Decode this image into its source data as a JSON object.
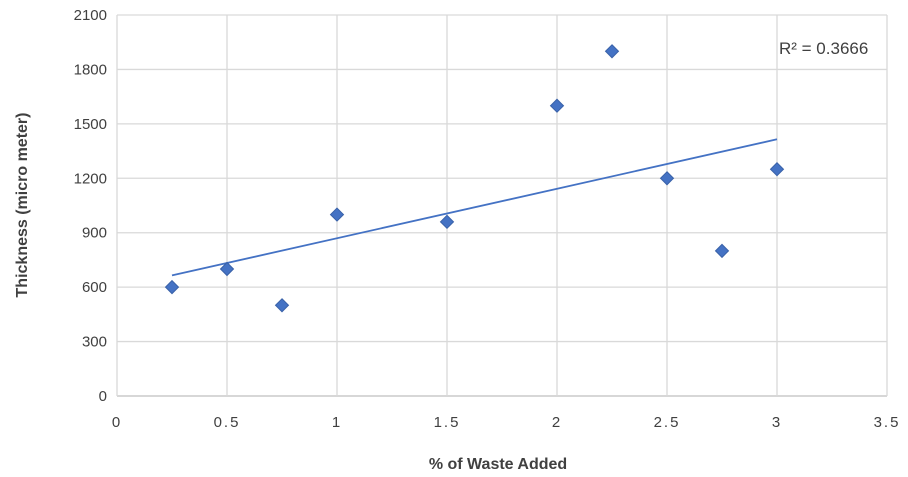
{
  "chart_data": {
    "type": "scatter",
    "title": "",
    "xlabel": "% of Waste Added",
    "ylabel": "Thickness (micro meter)",
    "xlim": [
      0,
      3.5
    ],
    "ylim": [
      0,
      2100
    ],
    "xticks": [
      0,
      0.5,
      1,
      1.5,
      2,
      2.5,
      3,
      3.5
    ],
    "xtick_labels": [
      "0",
      "0.5",
      "1",
      "1.5",
      "2",
      "2.5",
      "3",
      "3.5"
    ],
    "yticks": [
      0,
      300,
      600,
      900,
      1200,
      1500,
      1800,
      2100
    ],
    "ytick_labels": [
      "0",
      "300",
      "600",
      "900",
      "1200",
      "1500",
      "1800",
      "2100"
    ],
    "grid": true,
    "series": [
      {
        "marker": "diamond",
        "color": "#4472C4",
        "points": [
          {
            "x": 0.25,
            "y": 600
          },
          {
            "x": 0.5,
            "y": 700
          },
          {
            "x": 0.75,
            "y": 500
          },
          {
            "x": 1.0,
            "y": 1000
          },
          {
            "x": 1.5,
            "y": 960
          },
          {
            "x": 2.0,
            "y": 1600
          },
          {
            "x": 2.25,
            "y": 1900
          },
          {
            "x": 2.5,
            "y": 1200
          },
          {
            "x": 2.75,
            "y": 800
          },
          {
            "x": 3.0,
            "y": 1250
          }
        ]
      }
    ],
    "trendline": {
      "type": "linear",
      "color": "#4472C4",
      "x_range": [
        0.25,
        3.0
      ],
      "y_start": 665,
      "y_end": 1415,
      "r_squared_label": "R² = 0.3666"
    }
  }
}
